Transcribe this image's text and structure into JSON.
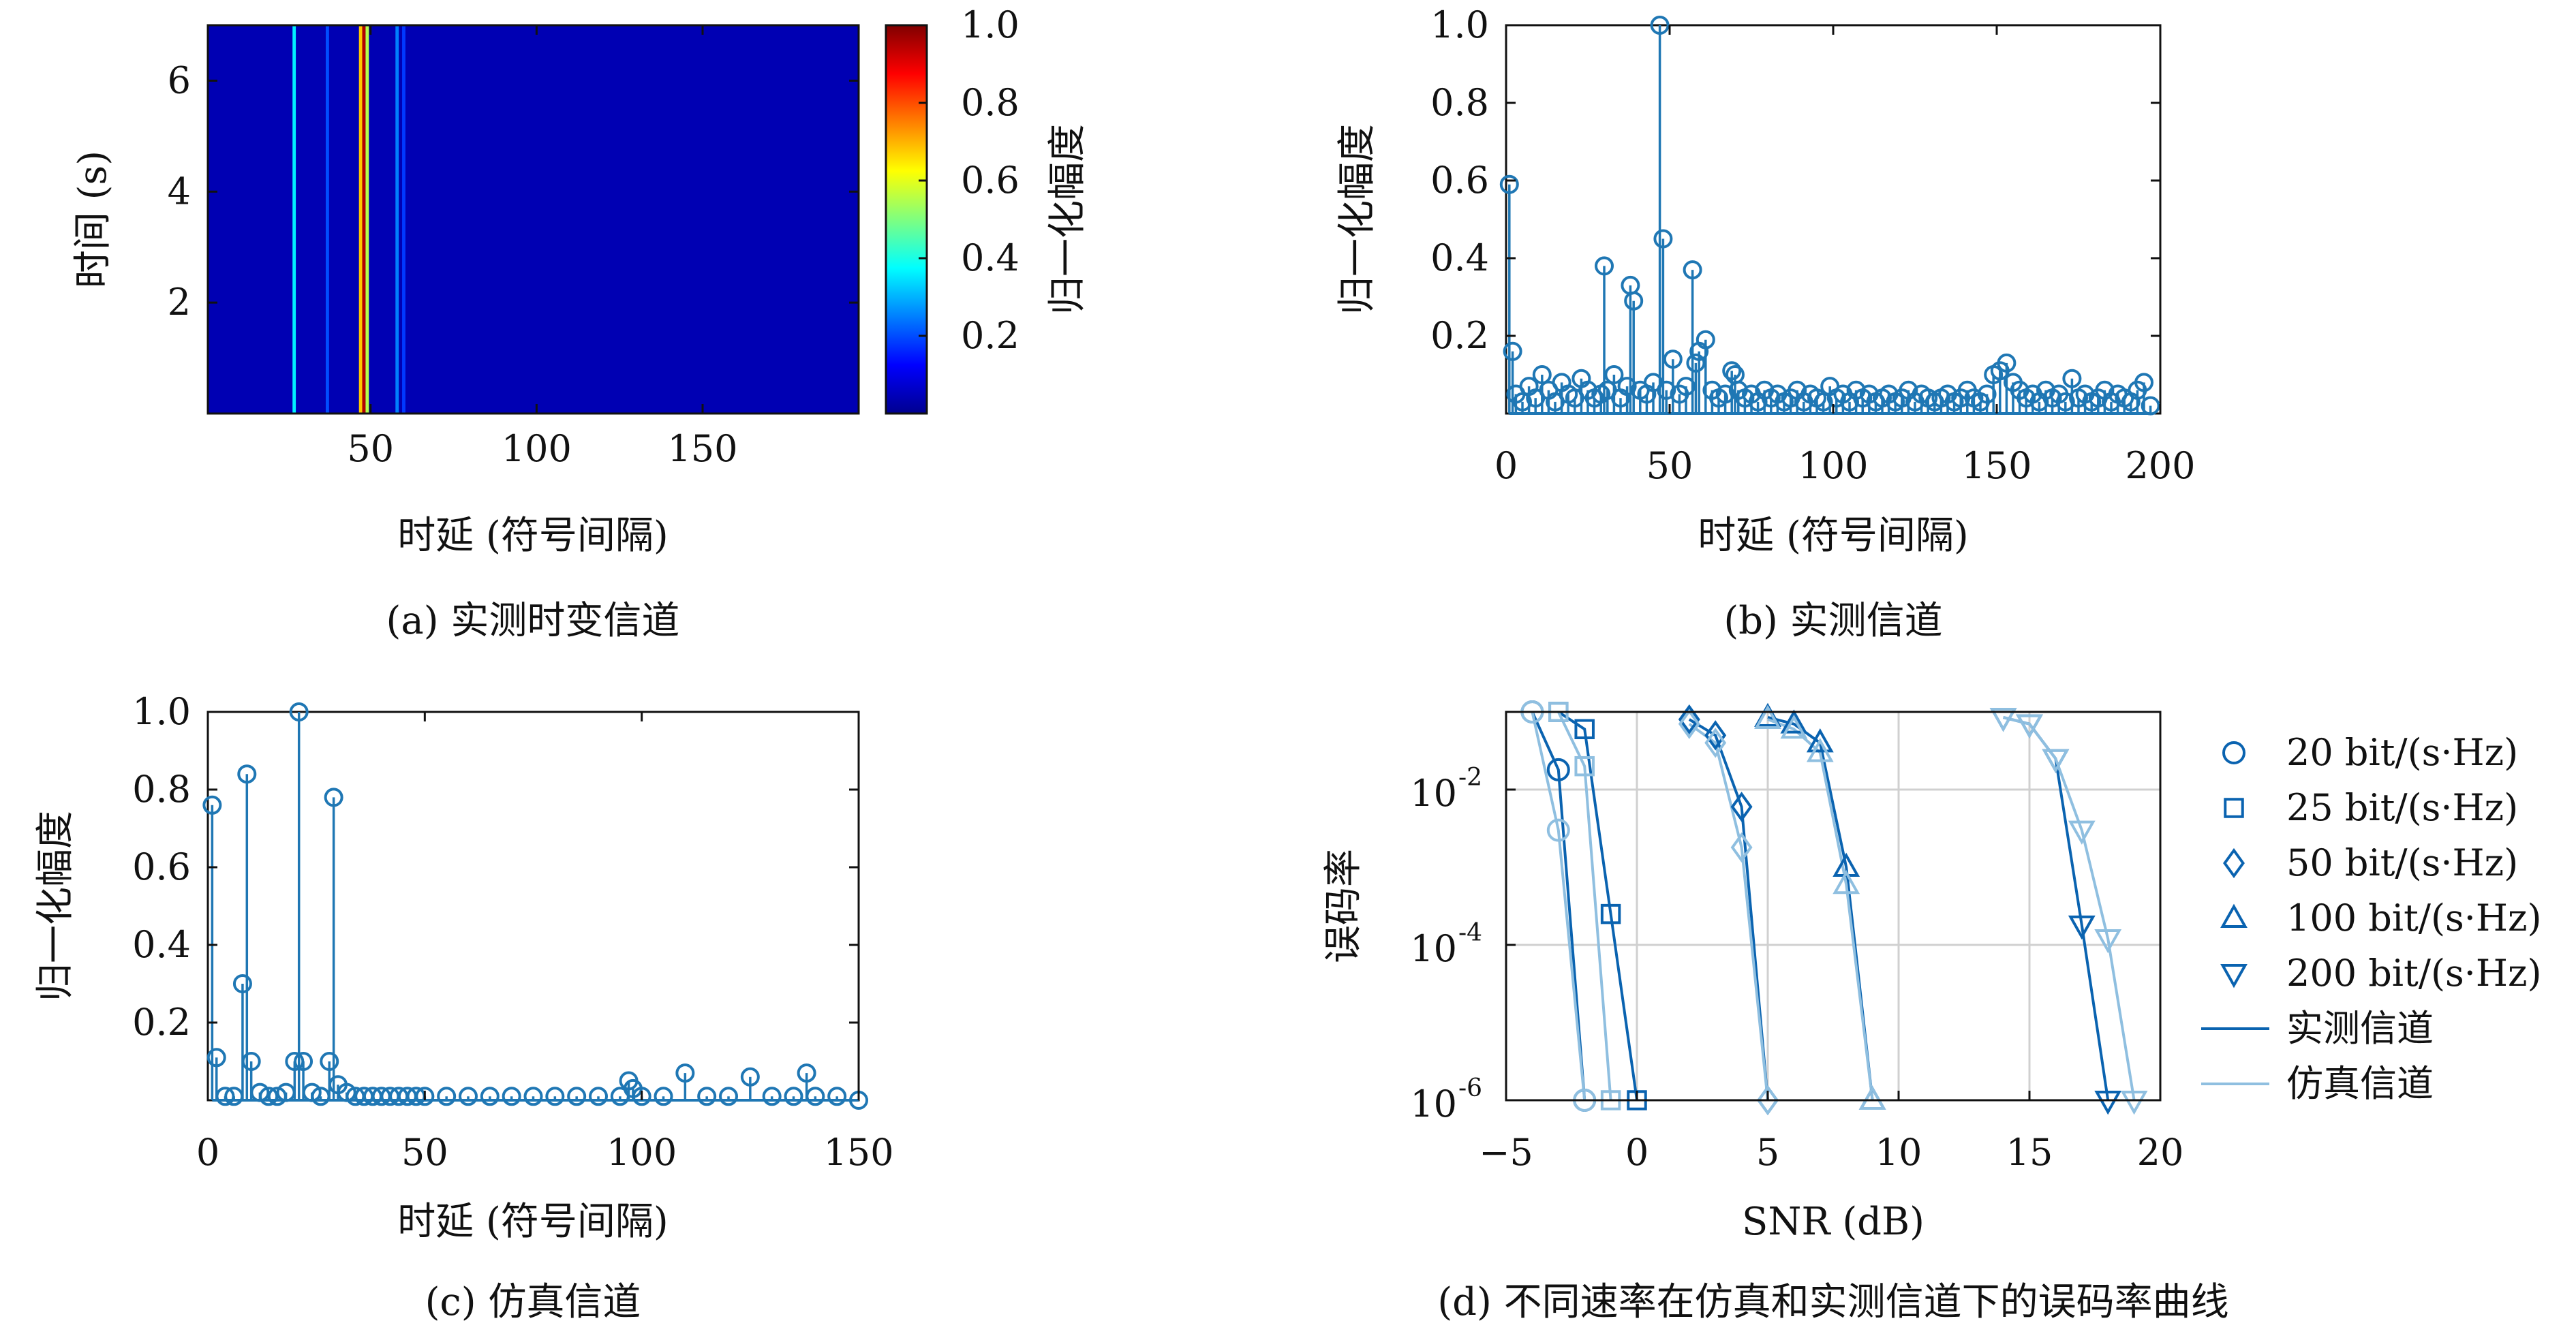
{
  "colors": {
    "stem": "#1f77b4",
    "measured_line": "#0a63b0",
    "simulated_line": "#8fbfe0",
    "grid": "#d0d0d0",
    "axis": "#111111"
  },
  "chart_data": [
    {
      "id": "a",
      "type": "heatmap",
      "caption": "(a) 实测时变信道",
      "xlabel": "时延 (符号间隔)",
      "ylabel": "时间 (s)",
      "colorbar_label": "归一化幅度",
      "xlim": [
        1,
        197
      ],
      "ylim": [
        0,
        7
      ],
      "x_ticks": [
        "50",
        "100",
        "150"
      ],
      "x_tick_values": [
        50,
        100,
        150
      ],
      "y_ticks": [
        "2",
        "4",
        "6"
      ],
      "y_tick_values": [
        2,
        4,
        6
      ],
      "colorbar_ticks": [
        "0.2",
        "0.4",
        "0.6",
        "0.8",
        "1.0"
      ],
      "colorbar_tick_values": [
        0.2,
        0.4,
        0.6,
        0.8,
        1.0
      ],
      "colorbar_range": [
        0,
        1
      ],
      "background_value": 0.05,
      "bright_columns": [
        {
          "delay": 27,
          "value": 0.36
        },
        {
          "delay": 37,
          "value": 0.2
        },
        {
          "delay": 47,
          "value": 0.68
        },
        {
          "delay": 48,
          "value": 0.95
        },
        {
          "delay": 49,
          "value": 0.55
        },
        {
          "delay": 58,
          "value": 0.25
        },
        {
          "delay": 60,
          "value": 0.18
        }
      ]
    },
    {
      "id": "b",
      "type": "stem",
      "caption": "(b) 实测信道",
      "xlabel": "时延 (符号间隔)",
      "ylabel": "归一化幅度",
      "xlim": [
        0,
        200
      ],
      "ylim": [
        0,
        1.0
      ],
      "x_ticks": [
        "0",
        "50",
        "100",
        "150",
        "200"
      ],
      "x_tick_values": [
        0,
        50,
        100,
        150,
        200
      ],
      "y_ticks": [
        "0.2",
        "0.4",
        "0.6",
        "0.8",
        "1.0"
      ],
      "y_tick_values": [
        0.2,
        0.4,
        0.6,
        0.8,
        1.0
      ],
      "x": [
        1,
        2,
        3,
        5,
        7,
        9,
        11,
        13,
        15,
        17,
        19,
        21,
        23,
        25,
        27,
        29,
        30,
        31,
        33,
        35,
        37,
        38,
        39,
        41,
        43,
        45,
        47,
        48,
        49,
        51,
        53,
        55,
        57,
        58,
        59,
        61,
        63,
        65,
        67,
        69,
        70,
        71,
        73,
        75,
        77,
        79,
        81,
        83,
        85,
        87,
        89,
        91,
        93,
        95,
        97,
        99,
        101,
        103,
        105,
        107,
        109,
        111,
        113,
        115,
        117,
        119,
        121,
        123,
        125,
        127,
        129,
        131,
        133,
        135,
        137,
        139,
        141,
        143,
        145,
        147,
        149,
        151,
        153,
        155,
        157,
        159,
        161,
        163,
        165,
        167,
        169,
        171,
        173,
        175,
        177,
        179,
        181,
        183,
        185,
        187,
        189,
        191,
        193,
        195,
        197
      ],
      "y": [
        0.59,
        0.16,
        0.05,
        0.03,
        0.07,
        0.04,
        0.1,
        0.06,
        0.03,
        0.08,
        0.05,
        0.04,
        0.09,
        0.06,
        0.04,
        0.05,
        0.38,
        0.06,
        0.1,
        0.04,
        0.07,
        0.33,
        0.29,
        0.06,
        0.05,
        0.08,
        1.0,
        0.45,
        0.06,
        0.14,
        0.05,
        0.07,
        0.37,
        0.13,
        0.16,
        0.19,
        0.06,
        0.04,
        0.05,
        0.11,
        0.1,
        0.06,
        0.04,
        0.05,
        0.03,
        0.06,
        0.04,
        0.05,
        0.03,
        0.04,
        0.06,
        0.03,
        0.05,
        0.04,
        0.03,
        0.07,
        0.04,
        0.05,
        0.03,
        0.06,
        0.04,
        0.05,
        0.03,
        0.04,
        0.05,
        0.03,
        0.04,
        0.06,
        0.03,
        0.05,
        0.04,
        0.03,
        0.04,
        0.05,
        0.03,
        0.04,
        0.06,
        0.04,
        0.03,
        0.05,
        0.1,
        0.11,
        0.13,
        0.08,
        0.06,
        0.04,
        0.05,
        0.03,
        0.06,
        0.04,
        0.05,
        0.03,
        0.09,
        0.04,
        0.05,
        0.03,
        0.04,
        0.06,
        0.03,
        0.05,
        0.04,
        0.03,
        0.06,
        0.08,
        0.02
      ]
    },
    {
      "id": "c",
      "type": "stem",
      "caption": "(c) 仿真信道",
      "xlabel": "时延 (符号间隔)",
      "ylabel": "归一化幅度",
      "xlim": [
        0,
        150
      ],
      "ylim": [
        0,
        1.0
      ],
      "x_ticks": [
        "0",
        "50",
        "100",
        "150"
      ],
      "x_tick_values": [
        0,
        50,
        100,
        150
      ],
      "y_ticks": [
        "0.2",
        "0.4",
        "0.6",
        "0.8",
        "1.0"
      ],
      "y_tick_values": [
        0.2,
        0.4,
        0.6,
        0.8,
        1.0
      ],
      "x": [
        1,
        2,
        4,
        6,
        8,
        9,
        10,
        12,
        14,
        16,
        18,
        20,
        21,
        22,
        24,
        26,
        28,
        29,
        30,
        32,
        34,
        36,
        38,
        40,
        42,
        44,
        46,
        48,
        50,
        55,
        60,
        65,
        70,
        75,
        80,
        85,
        90,
        95,
        97,
        98,
        100,
        105,
        110,
        115,
        120,
        125,
        130,
        135,
        138,
        140,
        145,
        150
      ],
      "y": [
        0.76,
        0.11,
        0.01,
        0.01,
        0.3,
        0.84,
        0.1,
        0.02,
        0.01,
        0.01,
        0.02,
        0.1,
        1.0,
        0.1,
        0.02,
        0.01,
        0.1,
        0.78,
        0.04,
        0.02,
        0.01,
        0.01,
        0.01,
        0.01,
        0.01,
        0.01,
        0.01,
        0.01,
        0.01,
        0.01,
        0.01,
        0.01,
        0.01,
        0.01,
        0.01,
        0.01,
        0.01,
        0.01,
        0.05,
        0.03,
        0.01,
        0.01,
        0.07,
        0.01,
        0.01,
        0.06,
        0.01,
        0.01,
        0.07,
        0.01,
        0.01,
        0.0
      ]
    },
    {
      "id": "d",
      "type": "line",
      "caption": "(d) 不同速率在仿真和实测信道下的误码率曲线",
      "xlabel": "SNR (dB)",
      "ylabel": "误码率",
      "xlim": [
        -5,
        20
      ],
      "ylim_log10": [
        -6,
        -1
      ],
      "log_y": true,
      "grid": true,
      "x_ticks": [
        "−5",
        "0",
        "5",
        "10",
        "15",
        "20"
      ],
      "x_tick_values": [
        -5,
        0,
        5,
        10,
        15,
        20
      ],
      "y_tick_bases": [
        "10",
        "10",
        "10"
      ],
      "y_tick_exponents": [
        "-2",
        "-4",
        "-6"
      ],
      "y_tick_values_log10": [
        -2,
        -4,
        -6
      ],
      "legend_position": "right",
      "legend": [
        {
          "label": "20 bit/(s·Hz)",
          "marker": "circle"
        },
        {
          "label": "25 bit/(s·Hz)",
          "marker": "square"
        },
        {
          "label": "50 bit/(s·Hz)",
          "marker": "diamond"
        },
        {
          "label": "100 bit/(s·Hz)",
          "marker": "triangle-up"
        },
        {
          "label": "200 bit/(s·Hz)",
          "marker": "triangle-down"
        },
        {
          "label": "实测信道",
          "marker": "line-dark"
        },
        {
          "label": "仿真信道",
          "marker": "line-light"
        }
      ],
      "series": [
        {
          "rate": "20 bit/(s·Hz)",
          "channel": "实测信道",
          "marker": "circle",
          "x": [
            -4,
            -3,
            -2
          ],
          "y": [
            0.1,
            0.018,
            1e-06
          ]
        },
        {
          "rate": "20 bit/(s·Hz)",
          "channel": "仿真信道",
          "marker": "circle",
          "x": [
            -4,
            -3,
            -2
          ],
          "y": [
            0.1,
            0.003,
            1e-06
          ]
        },
        {
          "rate": "25 bit/(s·Hz)",
          "channel": "实测信道",
          "marker": "square",
          "x": [
            -3,
            -2,
            -1,
            0
          ],
          "y": [
            0.1,
            0.06,
            0.00025,
            1e-06
          ]
        },
        {
          "rate": "25 bit/(s·Hz)",
          "channel": "仿真信道",
          "marker": "square",
          "x": [
            -3,
            -2,
            -1
          ],
          "y": [
            0.1,
            0.02,
            1e-06
          ]
        },
        {
          "rate": "50 bit/(s·Hz)",
          "channel": "实测信道",
          "marker": "diamond",
          "x": [
            2,
            3,
            4,
            5
          ],
          "y": [
            0.08,
            0.05,
            0.006,
            1e-06
          ]
        },
        {
          "rate": "50 bit/(s·Hz)",
          "channel": "仿真信道",
          "marker": "diamond",
          "x": [
            2,
            3,
            4,
            5
          ],
          "y": [
            0.07,
            0.04,
            0.0018,
            1e-06
          ]
        },
        {
          "rate": "100 bit/(s·Hz)",
          "channel": "实测信道",
          "marker": "triangle-up",
          "x": [
            5,
            6,
            7,
            8,
            9
          ],
          "y": [
            0.085,
            0.07,
            0.04,
            0.001,
            1e-06
          ]
        },
        {
          "rate": "100 bit/(s·Hz)",
          "channel": "仿真信道",
          "marker": "triangle-up",
          "x": [
            5,
            6,
            7,
            8,
            9
          ],
          "y": [
            0.08,
            0.06,
            0.03,
            0.0006,
            1e-06
          ]
        },
        {
          "rate": "200 bit/(s·Hz)",
          "channel": "实测信道",
          "marker": "triangle-down",
          "x": [
            14,
            15,
            16,
            17,
            18
          ],
          "y": [
            0.085,
            0.07,
            0.025,
            0.00018,
            1e-06
          ]
        },
        {
          "rate": "200 bit/(s·Hz)",
          "channel": "仿真信道",
          "marker": "triangle-down",
          "x": [
            14,
            15,
            16,
            17,
            18,
            19
          ],
          "y": [
            0.085,
            0.07,
            0.025,
            0.003,
            0.00012,
            1e-06
          ]
        }
      ]
    }
  ]
}
